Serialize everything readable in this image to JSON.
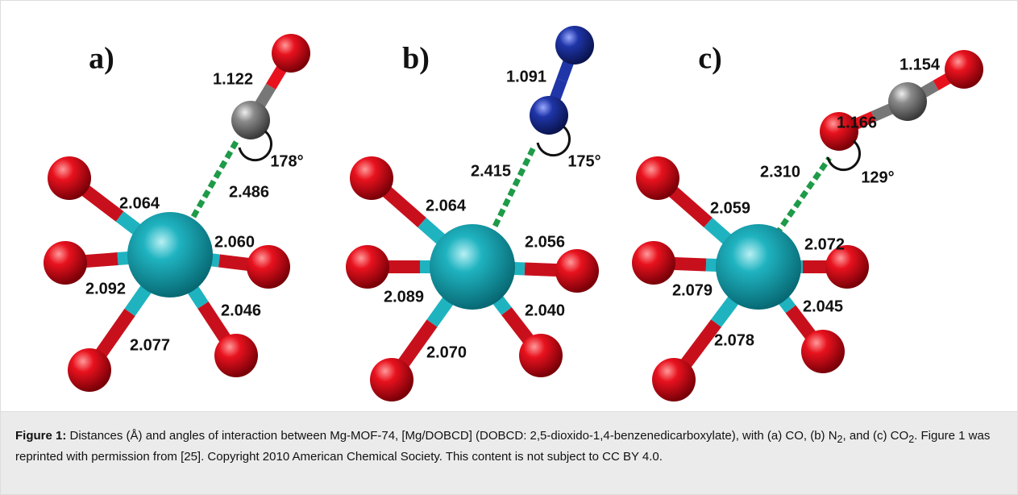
{
  "figure": {
    "panels": [
      {
        "label": "a)",
        "bond_labels": [
          "1.122",
          "2.486",
          "2.064",
          "2.060",
          "2.092",
          "2.046",
          "2.077"
        ],
        "angle_label": "178°"
      },
      {
        "label": "b)",
        "bond_labels": [
          "1.091",
          "2.415",
          "2.064",
          "2.056",
          "2.089",
          "2.040",
          "2.070"
        ],
        "angle_label": "175°"
      },
      {
        "label": "c)",
        "bond_labels": [
          "1.154",
          "1.166",
          "2.310",
          "2.059",
          "2.072",
          "2.079",
          "2.045",
          "2.078"
        ],
        "angle_label": "129°"
      }
    ]
  },
  "caption": {
    "label": "Figure 1:",
    "segments": [
      "Distances (Å) and angles of interaction between Mg-MOF-74, [Mg/DOBCD] (DOBCD: 2,5-dioxido-1,4-benzenedicarboxylate), with (a) CO, (b) N",
      "2",
      ", and (c) CO",
      "2",
      ". Figure 1 was reprinted with permission from [25]. Copyright 2010 American Chemical Society. This content is not subject to CC BY 4.0."
    ]
  }
}
